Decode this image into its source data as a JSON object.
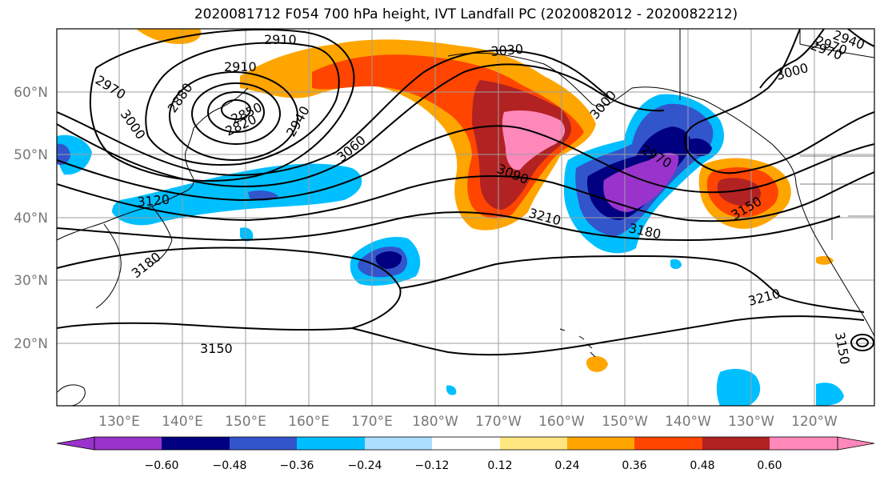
{
  "title": "2020081712 F054 700 hPa height, IVT Landfall PC (2020082012 - 2020082212)",
  "lon_labels": [
    "130°E",
    "140°E",
    "150°E",
    "160°E",
    "170°E",
    "180°W",
    "170°W",
    "160°W",
    "150°W",
    "140°W",
    "130°W",
    "120°W"
  ],
  "lat_labels": [
    "60°N",
    "50°N",
    "40°N",
    "30°N",
    "20°N"
  ],
  "colorbar": {
    "colors": [
      "#9933cc",
      "#000080",
      "#3355cc",
      "#00bfff",
      "#aaddff",
      "#ffffff",
      "#ffe680",
      "#ffa500",
      "#ff4500",
      "#b22222",
      "#ff88bb"
    ],
    "labels": [
      "−0.60",
      "−0.48",
      "−0.36",
      "−0.24",
      "−0.12",
      "0.12",
      "0.24",
      "0.36",
      "0.48",
      "0.60"
    ]
  },
  "contour_labels": [
    "2910",
    "2910",
    "2970",
    "2880",
    "3000",
    "2820",
    "2850",
    "2940",
    "3030",
    "3000",
    "2970",
    "3060",
    "3090",
    "3000",
    "2970",
    "3120",
    "3210",
    "3180",
    "3150",
    "3180",
    "3210",
    "3150",
    "3150",
    "2970",
    "2940"
  ]
}
